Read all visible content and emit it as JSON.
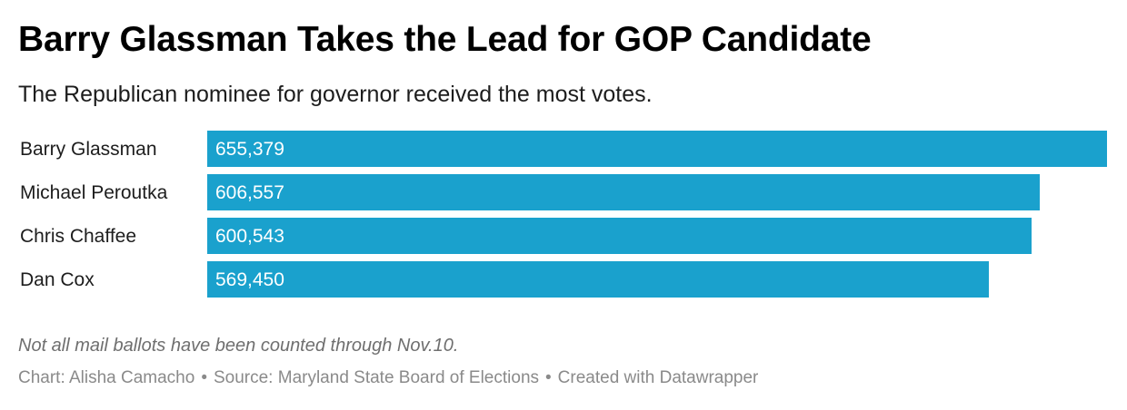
{
  "header": {
    "title": "Barry Glassman Takes the Lead for GOP Candidate",
    "subtitle": "The Republican nominee for governor received the most votes."
  },
  "chart_data": {
    "type": "bar",
    "orientation": "horizontal",
    "categories": [
      "Barry Glassman",
      "Michael Peroutka",
      "Chris Chaffee",
      "Dan Cox"
    ],
    "values": [
      655379,
      606557,
      600543,
      569450
    ],
    "value_labels": [
      "655,379",
      "606,557",
      "600,543",
      "569,450"
    ],
    "bar_color": "#1aa1cd",
    "label_color": "#ffffff",
    "xlim": [
      0,
      655379
    ],
    "grid": false
  },
  "notes": {
    "text": "Not all mail ballots have been counted through Nov.10."
  },
  "footer": {
    "chart_credit": "Chart: Alisha Camacho",
    "source": "Source: Maryland State Board of Elections",
    "tool": "Created with Datawrapper",
    "separator": "•"
  }
}
